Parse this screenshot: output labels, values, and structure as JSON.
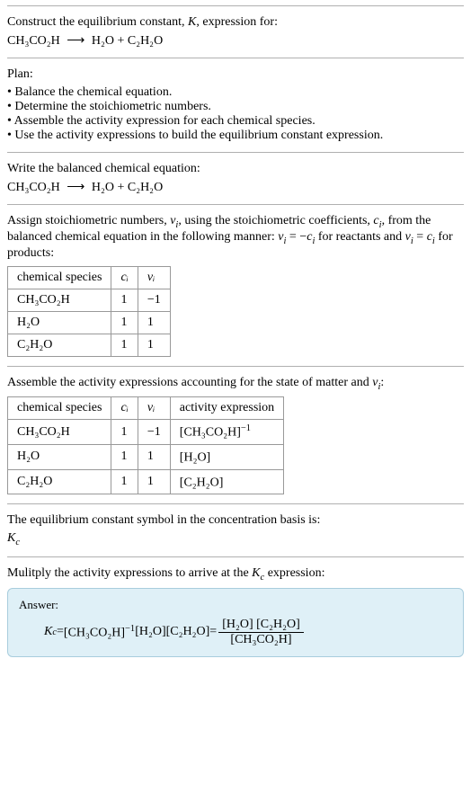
{
  "intro": {
    "line1_prefix": "Construct the equilibrium constant, ",
    "line1_K": "K",
    "line1_suffix": ", expression for:",
    "equation_lhs": "CH₃CO₂H",
    "equation_arrow": "⟶",
    "equation_rhs": "H₂O + C₂H₂O"
  },
  "plan": {
    "title": "Plan:",
    "items": [
      "• Balance the chemical equation.",
      "• Determine the stoichiometric numbers.",
      "• Assemble the activity expression for each chemical species.",
      "• Use the activity expressions to build the equilibrium constant expression."
    ]
  },
  "balanced": {
    "title": "Write the balanced chemical equation:",
    "equation_lhs": "CH₃CO₂H",
    "equation_arrow": "⟶",
    "equation_rhs": "H₂O + C₂H₂O"
  },
  "stoich": {
    "text_1": "Assign stoichiometric numbers, ",
    "nu": "ν",
    "sub_i": "i",
    "text_2": ", using the stoichiometric coefficients, ",
    "c": "c",
    "text_3": ", from the balanced chemical equation in the following manner: ",
    "rel1_a": "ν",
    "rel1_b": " = −",
    "rel1_c": "c",
    "text_4": " for reactants and ",
    "rel2_a": "ν",
    "rel2_b": " = ",
    "rel2_c": "c",
    "text_5": " for products:",
    "table": {
      "headers": [
        "chemical species",
        "cᵢ",
        "νᵢ"
      ],
      "rows": [
        [
          "CH₃CO₂H",
          "1",
          "−1"
        ],
        [
          "H₂O",
          "1",
          "1"
        ],
        [
          "C₂H₂O",
          "1",
          "1"
        ]
      ]
    }
  },
  "activity": {
    "title": "Assemble the activity expressions accounting for the state of matter and ",
    "nu": "ν",
    "sub_i": "i",
    "colon": ":",
    "table": {
      "headers": [
        "chemical species",
        "cᵢ",
        "νᵢ",
        "activity expression"
      ],
      "rows": [
        {
          "species": "CH₃CO₂H",
          "c": "1",
          "nu": "−1",
          "expr_base": "[CH₃CO₂H]",
          "expr_sup": "−1"
        },
        {
          "species": "H₂O",
          "c": "1",
          "nu": "1",
          "expr_base": "[H₂O]",
          "expr_sup": ""
        },
        {
          "species": "C₂H₂O",
          "c": "1",
          "nu": "1",
          "expr_base": "[C₂H₂O]",
          "expr_sup": ""
        }
      ]
    }
  },
  "symbol": {
    "line1": "The equilibrium constant symbol in the concentration basis is:",
    "kc_K": "K",
    "kc_sub": "c"
  },
  "multiply": {
    "line_a": "Mulitply the activity expressions to arrive at the ",
    "kc_K": "K",
    "kc_sub": "c",
    "line_b": " expression:"
  },
  "answer": {
    "label": "Answer:",
    "kc_K": "K",
    "kc_sub": "c",
    "eq": " = ",
    "term1_base": "[CH₃CO₂H]",
    "term1_sup": "−1",
    "sp": " ",
    "term2": "[H₂O]",
    "term3": "[C₂H₂O]",
    "eq2": " = ",
    "frac_num": "[H₂O] [C₂H₂O]",
    "frac_den": "[CH₃CO₂H]"
  },
  "style": {
    "border_color": "#b0b0b0",
    "answer_bg": "#dff0f7",
    "answer_border": "#a8cddd"
  }
}
